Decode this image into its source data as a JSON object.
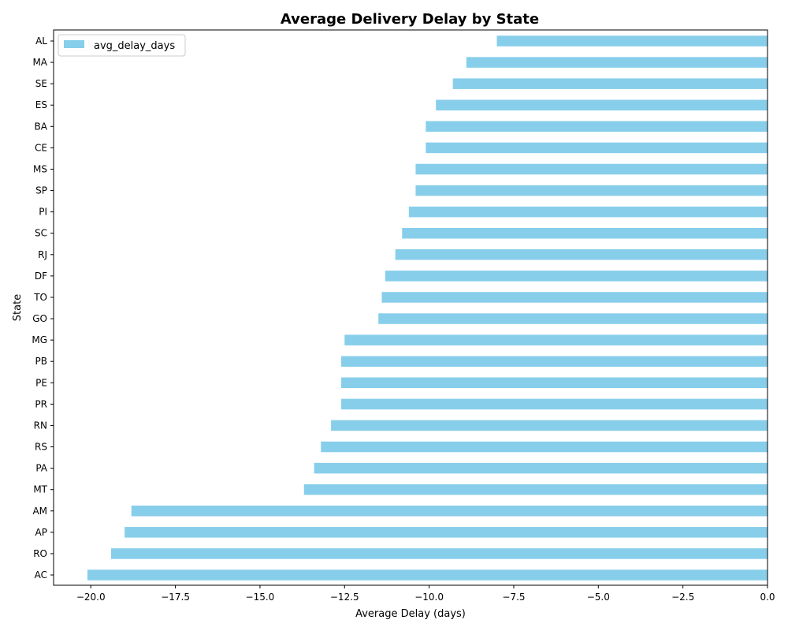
{
  "chart_data": {
    "type": "bar",
    "orientation": "horizontal",
    "title": "Average Delivery Delay by State",
    "xlabel": "Average Delay (days)",
    "ylabel": "State",
    "xlim": [
      -21.1,
      0
    ],
    "xticks": [
      -20.0,
      -17.5,
      -15.0,
      -12.5,
      -10.0,
      -7.5,
      -5.0,
      -2.5,
      0.0
    ],
    "xtick_labels": [
      "−20.0",
      "−17.5",
      "−15.0",
      "−12.5",
      "−10.0",
      "−7.5",
      "−5.0",
      "−2.5",
      "0.0"
    ],
    "grid": false,
    "legend": {
      "position": "top-left",
      "entries": [
        "avg_delay_days"
      ]
    },
    "bar_color": "#87ceeb",
    "categories": [
      "AL",
      "MA",
      "SE",
      "ES",
      "BA",
      "CE",
      "MS",
      "SP",
      "PI",
      "SC",
      "RJ",
      "DF",
      "TO",
      "GO",
      "MG",
      "PB",
      "PE",
      "PR",
      "RN",
      "RS",
      "PA",
      "MT",
      "AM",
      "AP",
      "RO",
      "AC"
    ],
    "series": [
      {
        "name": "avg_delay_days",
        "values": [
          -8.0,
          -8.9,
          -9.3,
          -9.8,
          -10.1,
          -10.1,
          -10.4,
          -10.4,
          -10.6,
          -10.8,
          -11.0,
          -11.3,
          -11.4,
          -11.5,
          -12.5,
          -12.6,
          -12.6,
          -12.6,
          -12.9,
          -13.2,
          -13.4,
          -13.7,
          -18.8,
          -19.0,
          -19.4,
          -20.1
        ]
      }
    ]
  }
}
